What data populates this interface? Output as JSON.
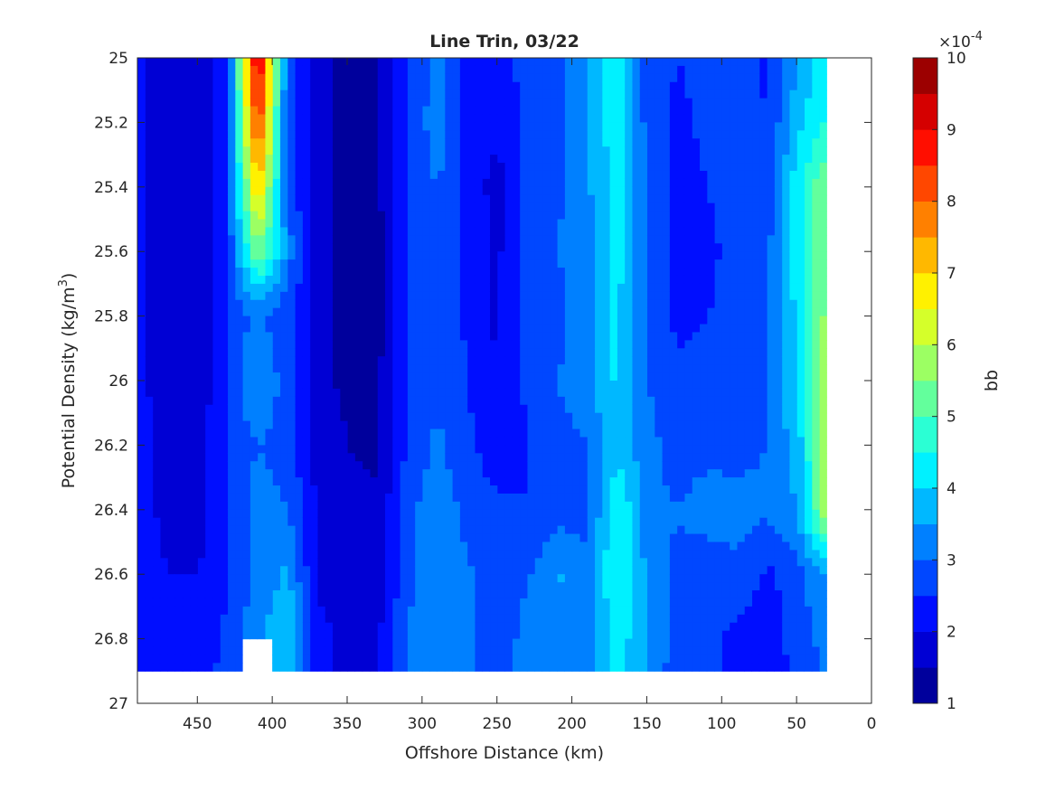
{
  "chart_data": {
    "type": "contour",
    "title": "Line Trin, 03/22",
    "xlabel": "Offshore Distance (km)",
    "ylabel": {
      "main": "Potential Density (kg/m",
      "sup": "3",
      "tail": ")"
    },
    "xlim": [
      0,
      490
    ],
    "x_reversed": true,
    "ylim": [
      25,
      27
    ],
    "y_reversed": true,
    "x_ticks": [
      450,
      400,
      350,
      300,
      250,
      200,
      150,
      100,
      50,
      0
    ],
    "y_ticks": [
      "25",
      "25.2",
      "25.4",
      "25.6",
      "25.8",
      "26",
      "26.2",
      "26.4",
      "26.6",
      "26.8",
      "27"
    ],
    "colorbar": {
      "label": "bb",
      "multiplier_base": "×10",
      "multiplier_exp": "-4",
      "range": [
        1,
        10
      ],
      "ticks": [
        1,
        2,
        3,
        4,
        5,
        6,
        7,
        8,
        9,
        10
      ],
      "level_step": 0.5,
      "colormap": "jet"
    },
    "data_extent": {
      "x": [
        30,
        490
      ],
      "y": [
        25,
        26.9
      ]
    },
    "grid": {
      "x": [
        490,
        470,
        450,
        430,
        410,
        390,
        370,
        350,
        330,
        310,
        290,
        270,
        250,
        230,
        210,
        190,
        170,
        150,
        130,
        110,
        90,
        70,
        50,
        30
      ],
      "y": [
        25.0,
        25.2,
        25.4,
        25.6,
        25.8,
        26.0,
        26.2,
        26.4,
        26.6,
        26.8,
        26.9
      ],
      "values": [
        [
          2.2,
          1.6,
          1.5,
          2.6,
          9.5,
          2.7,
          1.6,
          1.4,
          1.4,
          2.4,
          3.2,
          2.3,
          2.2,
          2.7,
          2.9,
          3.4,
          4.4,
          2.7,
          2.5,
          2.6,
          2.8,
          2.4,
          3.5,
          4.3
        ],
        [
          2.2,
          1.6,
          1.5,
          2.6,
          8.6,
          2.7,
          1.6,
          1.4,
          1.4,
          2.4,
          3.4,
          2.3,
          2.1,
          2.7,
          2.9,
          3.4,
          4.4,
          2.8,
          2.4,
          2.6,
          2.8,
          2.5,
          3.8,
          4.6
        ],
        [
          2.2,
          1.6,
          1.5,
          2.5,
          7.2,
          2.8,
          1.6,
          1.4,
          1.4,
          2.5,
          3.0,
          2.3,
          1.8,
          2.7,
          2.9,
          3.4,
          4.3,
          2.9,
          2.3,
          2.5,
          2.8,
          2.6,
          4.3,
          5.5
        ],
        [
          2.2,
          1.6,
          1.6,
          2.6,
          5.5,
          3.3,
          1.7,
          1.2,
          1.3,
          2.5,
          3.0,
          2.4,
          1.9,
          2.7,
          3.0,
          3.3,
          4.2,
          3.0,
          2.3,
          2.3,
          2.8,
          2.9,
          4.3,
          5.6
        ],
        [
          2.2,
          1.6,
          1.6,
          2.6,
          3.1,
          2.6,
          1.8,
          1.3,
          1.3,
          2.5,
          3.0,
          2.4,
          1.9,
          2.7,
          2.8,
          3.4,
          4.1,
          2.9,
          2.4,
          2.5,
          2.7,
          3.0,
          4.1,
          5.7
        ],
        [
          2.2,
          1.6,
          1.6,
          2.6,
          3.6,
          2.7,
          1.6,
          1.4,
          1.4,
          2.5,
          2.9,
          2.5,
          2.0,
          2.6,
          3.0,
          3.4,
          4.1,
          3.0,
          2.6,
          2.7,
          2.8,
          3.0,
          4.1,
          5.8
        ],
        [
          2.3,
          1.7,
          1.7,
          2.6,
          3.0,
          2.8,
          1.8,
          1.5,
          1.4,
          2.6,
          3.1,
          2.6,
          2.2,
          2.5,
          2.8,
          3.0,
          3.8,
          3.2,
          2.7,
          2.8,
          2.8,
          3.0,
          3.7,
          5.9
        ],
        [
          2.3,
          1.8,
          1.7,
          2.6,
          3.2,
          3.0,
          1.9,
          1.6,
          1.6,
          2.8,
          3.4,
          2.8,
          2.6,
          2.5,
          2.8,
          2.8,
          4.6,
          3.2,
          3.0,
          3.3,
          3.2,
          3.1,
          3.5,
          6.0
        ],
        [
          2.4,
          2.0,
          2.0,
          2.5,
          3.1,
          3.6,
          1.9,
          1.7,
          1.7,
          2.8,
          3.5,
          3.1,
          2.5,
          2.9,
          3.6,
          3.1,
          4.6,
          3.4,
          2.9,
          2.6,
          2.9,
          2.4,
          2.8,
          3.6
        ],
        [
          2.5,
          2.1,
          2.1,
          2.6,
          3.4,
          4.0,
          2.2,
          1.8,
          1.9,
          3.1,
          3.3,
          3.2,
          2.5,
          3.3,
          3.0,
          3.3,
          4.3,
          3.5,
          2.8,
          2.7,
          2.3,
          2.2,
          2.7,
          3.2
        ],
        [
          2.5,
          2.2,
          2.2,
          2.7,
          3.3,
          3.9,
          2.3,
          1.8,
          1.9,
          3.0,
          3.2,
          3.1,
          2.5,
          3.3,
          3.1,
          3.4,
          4.2,
          3.4,
          2.7,
          2.6,
          2.4,
          2.3,
          2.6,
          3.1
        ]
      ],
      "masked": [
        {
          "x": [
            400,
            420
          ],
          "y_from": 26.8
        }
      ]
    }
  }
}
